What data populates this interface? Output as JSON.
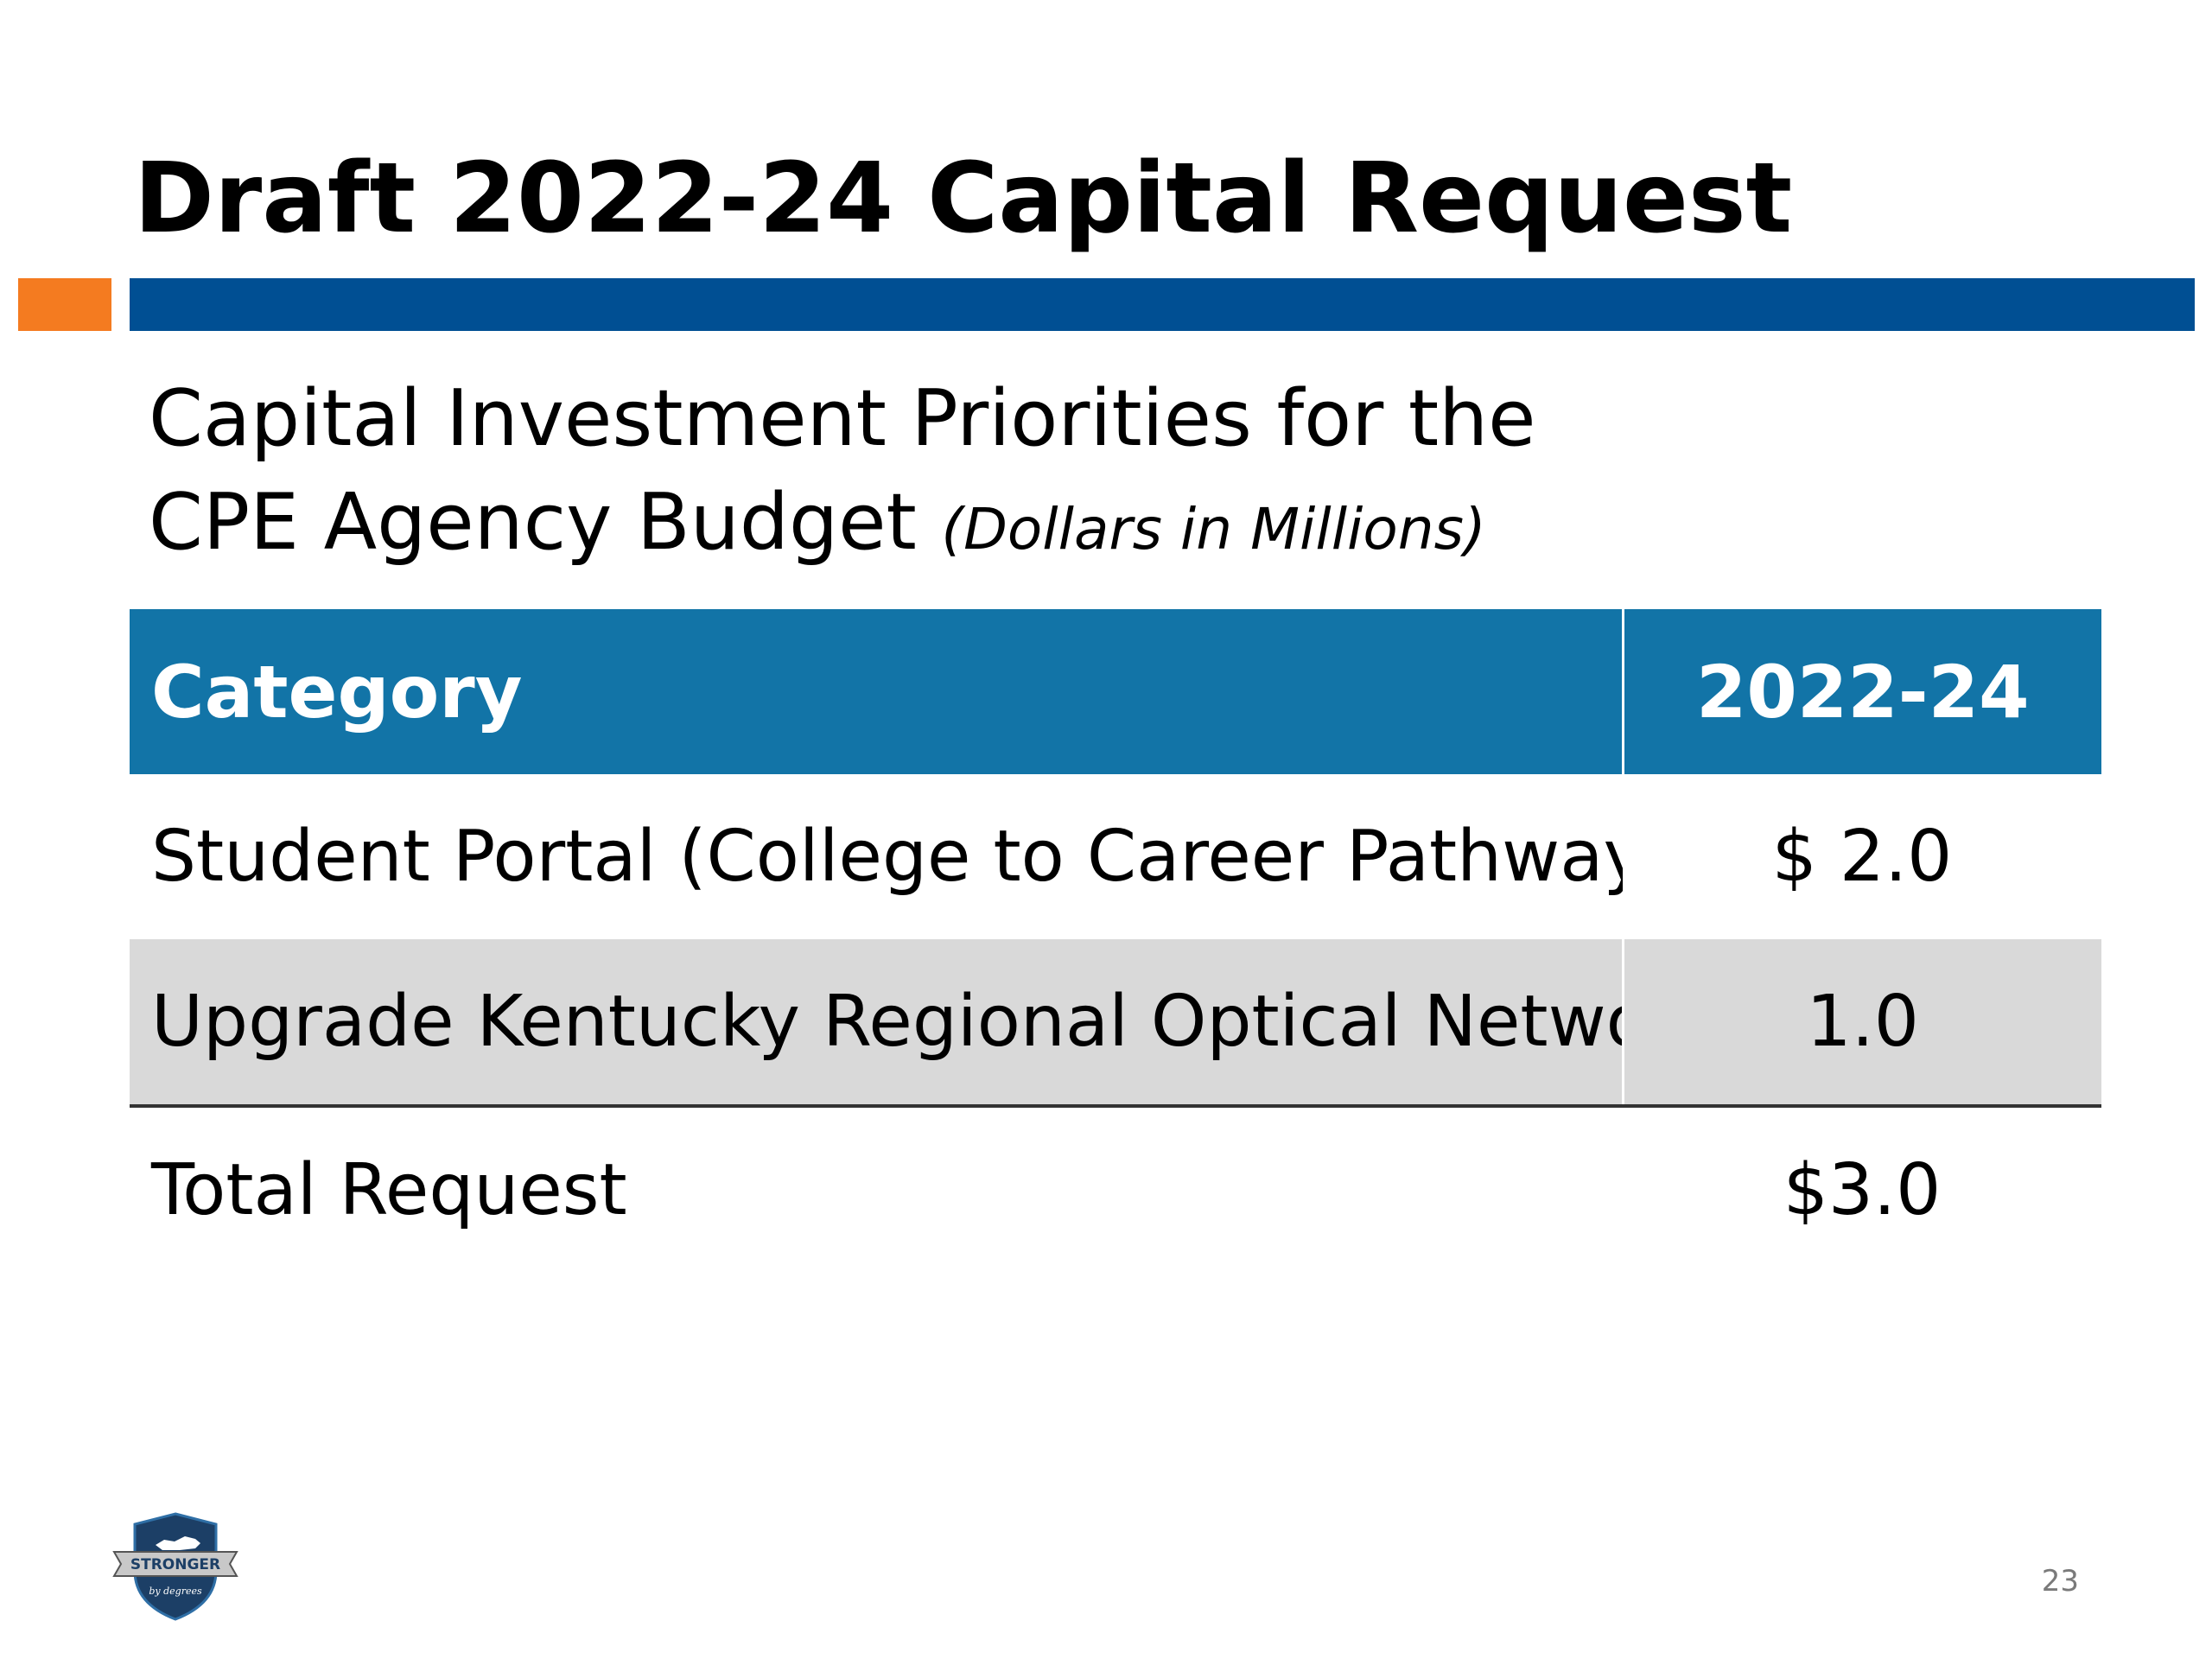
{
  "slide": {
    "title": "Draft 2022-24 Capital Request",
    "subtitle_line1": "Capital Investment Priorities for the",
    "subtitle_line2": "CPE Agency Budget",
    "subtitle_units": "(Dollars in Millions)",
    "page_number": "23"
  },
  "table": {
    "headers": [
      "Category",
      "2022-24"
    ],
    "rows": [
      {
        "category": "Student Portal (College to Career Pathways)",
        "amount": "$ 2.0"
      },
      {
        "category": "Upgrade Kentucky Regional Optical Network",
        "amount": "1.0"
      }
    ],
    "total": {
      "category": "Total Request",
      "amount": "$3.0"
    }
  },
  "logo": {
    "icon": "kentucky-shield-logo",
    "text_main": "STRONGER",
    "text_sub": "by degrees"
  },
  "colors": {
    "accent_orange": "#f47b20",
    "title_rule_blue": "#004f93",
    "table_header_blue": "#1274a7",
    "row_shade_gray": "#d9d9d9",
    "logo_navy": "#1c3f66",
    "logo_blue": "#2f6fa6",
    "logo_banner_gray": "#c8c8c8"
  }
}
